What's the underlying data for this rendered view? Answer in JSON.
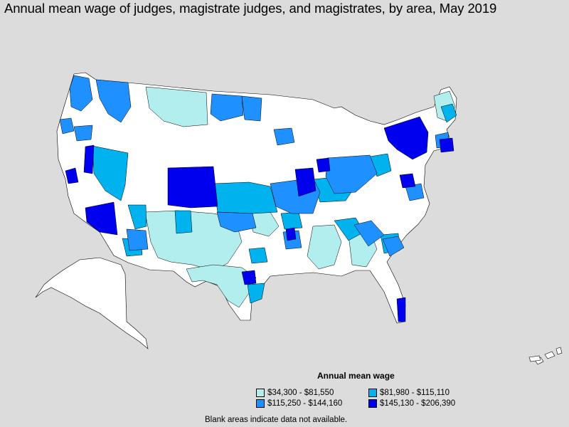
{
  "title": "Annual mean wage of judges, magistrate judges, and magistrates, by area, May 2019",
  "legend": {
    "title": "Annual mean wage",
    "items": [
      {
        "label": "$34,300 - $81,550",
        "color": "#b3eeee"
      },
      {
        "label": "$81,980 - $115,110",
        "color": "#00b2ee"
      },
      {
        "label": "$115,250 - $144,160",
        "color": "#1e90ff"
      },
      {
        "label": "$145,130 - $206,390",
        "color": "#0000ee"
      }
    ]
  },
  "footnote": "Blank areas indicate data not available.",
  "colors": {
    "background": "#dcdcdc",
    "no_data": "#ffffff",
    "border": "#000000"
  }
}
